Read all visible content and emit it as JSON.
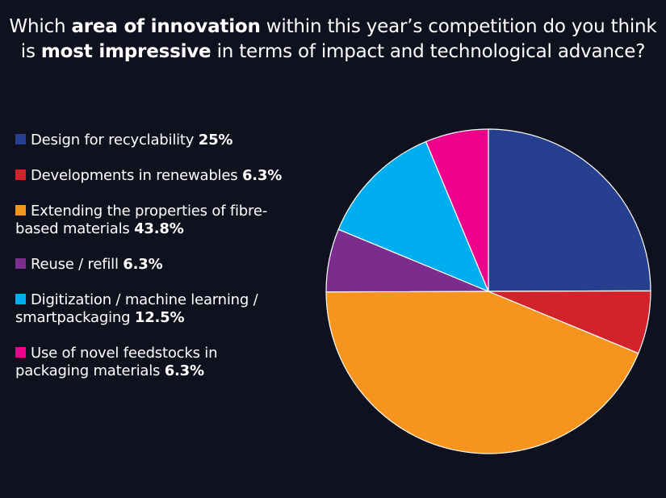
{
  "title": {
    "line1_pre": "Which ",
    "line1_bold": "area of innovation",
    "line1_post": " within this year’s competition do you think",
    "line2_pre": "is ",
    "line2_bold": "most impressive",
    "line2_post": " in terms of impact and technological advance?"
  },
  "chart_data": {
    "type": "pie",
    "slices": [
      {
        "label_line1": "Design for recyclability",
        "label_line2": "",
        "value_text": "25%",
        "value": 25,
        "color": "#263f8e"
      },
      {
        "label_line1": "Developments in renewables",
        "label_line2": "",
        "value_text": "6.3%",
        "value": 6.3,
        "color": "#d3232a"
      },
      {
        "label_line1": "Extending the properties of fibre-",
        "label_line2": "based materials",
        "value_text": "43.8%",
        "value": 43.8,
        "color": "#f7941d"
      },
      {
        "label_line1": "Reuse / refill",
        "label_line2": "",
        "value_text": "6.3%",
        "value": 6.3,
        "color": "#7b2d8e"
      },
      {
        "label_line1": "Digitization / machine learning /",
        "label_line2": "smartpackaging",
        "value_text": "12.5%",
        "value": 12.5,
        "color": "#00aeef"
      },
      {
        "label_line1": "Use of novel feedstocks in",
        "label_line2": "packaging materials",
        "value_text": "6.3%",
        "value": 6.3,
        "color": "#ec008c"
      }
    ],
    "start_angle_deg": 0,
    "direction": "clockwise",
    "legend_position": "left"
  }
}
